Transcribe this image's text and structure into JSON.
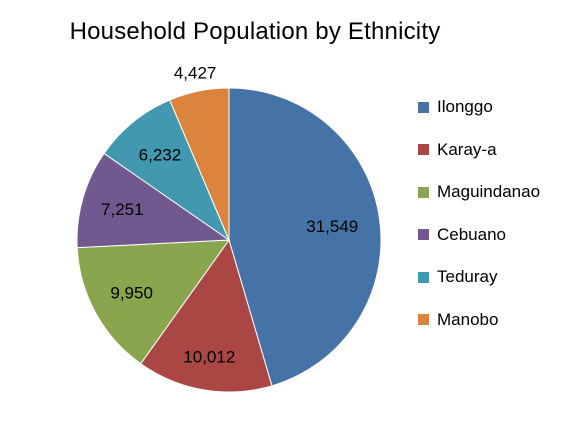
{
  "chart_data": {
    "type": "pie",
    "title": "Household Population by Ethnicity",
    "categories": [
      "Ilonggo",
      "Karay-a",
      "Maguindanao",
      "Cebuano",
      "Teduray",
      "Manobo"
    ],
    "values": [
      31549,
      10012,
      9950,
      7251,
      6232,
      4427
    ],
    "data_labels": [
      "31,549",
      "10,012",
      "9,950",
      "7,251",
      "6,232",
      "4,427"
    ],
    "colors": [
      "#4572A7",
      "#AA4643",
      "#89A54E",
      "#71588F",
      "#4198AF",
      "#DB843D"
    ],
    "legend_position": "right",
    "start_angle": "12 o'clock",
    "direction": "clockwise"
  }
}
